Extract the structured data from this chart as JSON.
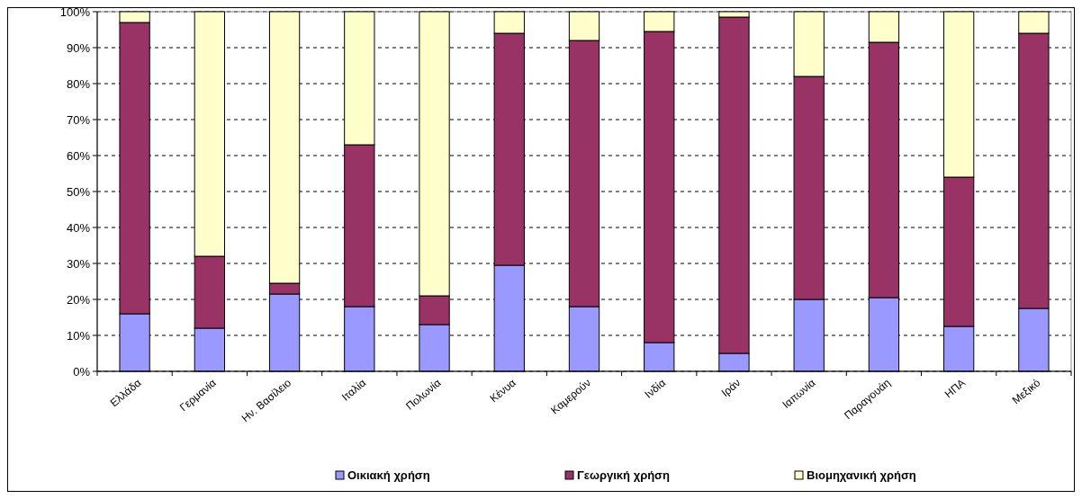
{
  "chart_data": {
    "type": "bar",
    "stacked": true,
    "categories": [
      "Ελλάδα",
      "Γερμανία",
      "Ην. Βασίλειο",
      "Ιταλία",
      "Πολωνία",
      "Κένυα",
      "Καμερούν",
      "Ινδία",
      "Ιράν",
      "Ιαπωνία",
      "Παραγουάη",
      "ΗΠΑ",
      "Μεξικό"
    ],
    "series": [
      {
        "name": "Οικιακή χρήση",
        "color": "#9999ff",
        "values": [
          16,
          12,
          21.5,
          18,
          13,
          29.5,
          18,
          8,
          5,
          20,
          20.5,
          12.5,
          17.5
        ]
      },
      {
        "name": "Γεωργική χρήση",
        "color": "#993366",
        "values": [
          81,
          20,
          3,
          45,
          8,
          64.5,
          74,
          86.5,
          93.5,
          62,
          71,
          41.5,
          76.5
        ]
      },
      {
        "name": "Βιομηχανική χρήση",
        "color": "#ffffcc",
        "values": [
          3,
          68,
          75.5,
          37,
          79,
          6,
          8,
          5.5,
          1.5,
          18,
          8.5,
          46,
          6
        ]
      }
    ],
    "ylim": [
      0,
      100
    ],
    "yticks": [
      {
        "value": 0,
        "label": "0%"
      },
      {
        "value": 10,
        "label": "10%"
      },
      {
        "value": 20,
        "label": "20%"
      },
      {
        "value": 30,
        "label": "30%"
      },
      {
        "value": 40,
        "label": "40%"
      },
      {
        "value": 50,
        "label": "50%"
      },
      {
        "value": 60,
        "label": "60%"
      },
      {
        "value": 70,
        "label": "70%"
      },
      {
        "value": 80,
        "label": "80%"
      },
      {
        "value": 90,
        "label": "90%"
      },
      {
        "value": 100,
        "label": "100%"
      }
    ],
    "grid": "y",
    "legend": "bottom"
  }
}
